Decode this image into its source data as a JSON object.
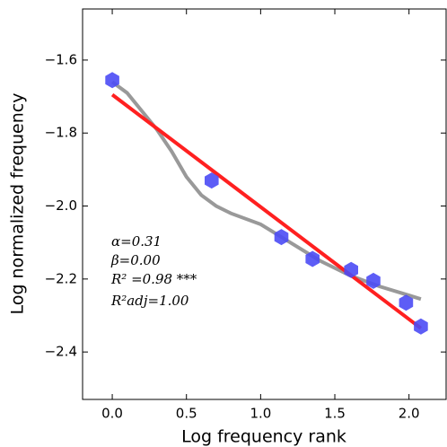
{
  "chart_data": {
    "type": "scatter",
    "x_label": "Log frequency rank",
    "y_label": "Log normalized frequency",
    "xlim": [
      -0.2,
      2.25
    ],
    "ylim": [
      -2.53,
      -1.46
    ],
    "xticks": [
      {
        "value": 0,
        "label": "0.0"
      },
      {
        "value": 0.5,
        "label": "0.5"
      },
      {
        "value": 1,
        "label": "1.0"
      },
      {
        "value": 1.5,
        "label": "1.5"
      },
      {
        "value": 2,
        "label": "2.0"
      }
    ],
    "yticks": [
      {
        "value": -1.6,
        "label": "−1.6"
      },
      {
        "value": -1.8,
        "label": "−1.8"
      },
      {
        "value": -2,
        "label": "−2.0"
      },
      {
        "value": -2.2,
        "label": "−2.2"
      },
      {
        "value": -2.4,
        "label": "−2.4"
      }
    ],
    "grid": false,
    "series": [
      {
        "mark": "line",
        "color": "#999999",
        "x": [
          0,
          0.1,
          0.2,
          0.3,
          0.4,
          0.5,
          0.6,
          0.7,
          0.8,
          1.0,
          1.2,
          1.4,
          1.6,
          1.8,
          2.0,
          2.08
        ],
        "values": [
          -1.66,
          -1.69,
          -1.74,
          -1.79,
          -1.85,
          -1.92,
          -1.97,
          -2.0,
          -2.02,
          -2.05,
          -2.1,
          -2.15,
          -2.19,
          -2.22,
          -2.245,
          -2.255
        ]
      },
      {
        "mark": "line",
        "color": "#ff2020",
        "x": [
          0,
          2.08
        ],
        "values": [
          -1.695,
          -2.335
        ]
      },
      {
        "mark": "hexagon",
        "color": "#4b4bf5",
        "x": [
          0,
          0.67,
          1.14,
          1.35,
          1.61,
          1.76,
          1.98,
          2.08
        ],
        "values": [
          -1.655,
          -1.93,
          -2.085,
          -2.145,
          -2.175,
          -2.205,
          -2.265,
          -2.33
        ]
      }
    ],
    "annotations": [
      "α=0.31",
      "β=0.00",
      "R² =0.98 ***",
      "R²adj=1.00"
    ]
  }
}
